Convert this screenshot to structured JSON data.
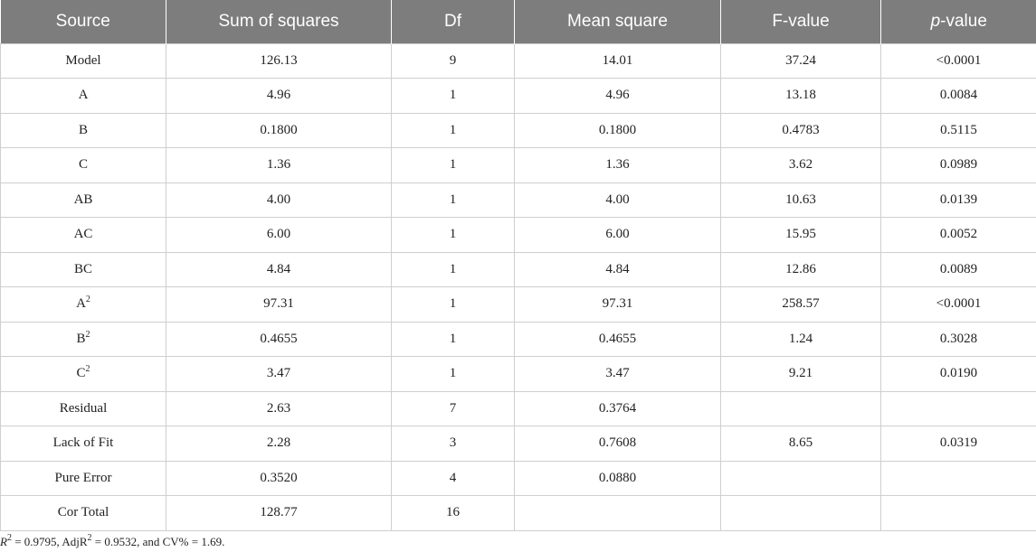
{
  "chart_data": {
    "type": "table",
    "columns": [
      "Source",
      "Sum of squares",
      "Df",
      "Mean square",
      "F-value",
      "p-value"
    ],
    "rows": [
      {
        "source": "Model",
        "source_sup": "",
        "ss": "126.13",
        "df": "9",
        "ms": "14.01",
        "f": "37.24",
        "p": "<0.0001"
      },
      {
        "source": "A",
        "source_sup": "",
        "ss": "4.96",
        "df": "1",
        "ms": "4.96",
        "f": "13.18",
        "p": "0.0084"
      },
      {
        "source": "B",
        "source_sup": "",
        "ss": "0.1800",
        "df": "1",
        "ms": "0.1800",
        "f": "0.4783",
        "p": "0.5115"
      },
      {
        "source": "C",
        "source_sup": "",
        "ss": "1.36",
        "df": "1",
        "ms": "1.36",
        "f": "3.62",
        "p": "0.0989"
      },
      {
        "source": "AB",
        "source_sup": "",
        "ss": "4.00",
        "df": "1",
        "ms": "4.00",
        "f": "10.63",
        "p": "0.0139"
      },
      {
        "source": "AC",
        "source_sup": "",
        "ss": "6.00",
        "df": "1",
        "ms": "6.00",
        "f": "15.95",
        "p": "0.0052"
      },
      {
        "source": "BC",
        "source_sup": "",
        "ss": "4.84",
        "df": "1",
        "ms": "4.84",
        "f": "12.86",
        "p": "0.0089"
      },
      {
        "source": "A",
        "source_sup": "2",
        "ss": "97.31",
        "df": "1",
        "ms": "97.31",
        "f": "258.57",
        "p": "<0.0001"
      },
      {
        "source": "B",
        "source_sup": "2",
        "ss": "0.4655",
        "df": "1",
        "ms": "0.4655",
        "f": "1.24",
        "p": "0.3028"
      },
      {
        "source": "C",
        "source_sup": "2",
        "ss": "3.47",
        "df": "1",
        "ms": "3.47",
        "f": "9.21",
        "p": "0.0190"
      },
      {
        "source": "Residual",
        "source_sup": "",
        "ss": "2.63",
        "df": "7",
        "ms": "0.3764",
        "f": "",
        "p": ""
      },
      {
        "source": "Lack of Fit",
        "source_sup": "",
        "ss": "2.28",
        "df": "3",
        "ms": "0.7608",
        "f": "8.65",
        "p": "0.0319"
      },
      {
        "source": "Pure Error",
        "source_sup": "",
        "ss": "0.3520",
        "df": "4",
        "ms": "0.0880",
        "f": "",
        "p": ""
      },
      {
        "source": "Cor Total",
        "source_sup": "",
        "ss": "128.77",
        "df": "16",
        "ms": "",
        "f": "",
        "p": ""
      }
    ],
    "footnote": {
      "r2_label": "R",
      "r2_sup": "2",
      "r2_value": " = 0.9795, ",
      "adj_label": "AdjR",
      "adj_sup": "2",
      "adj_value": " = 0.9532, and CV% = 1.69."
    }
  },
  "colors": {
    "header_bg": "#7d7d7d",
    "header_text": "#ffffff",
    "grid": "#cfcfcf",
    "text": "#222222"
  }
}
